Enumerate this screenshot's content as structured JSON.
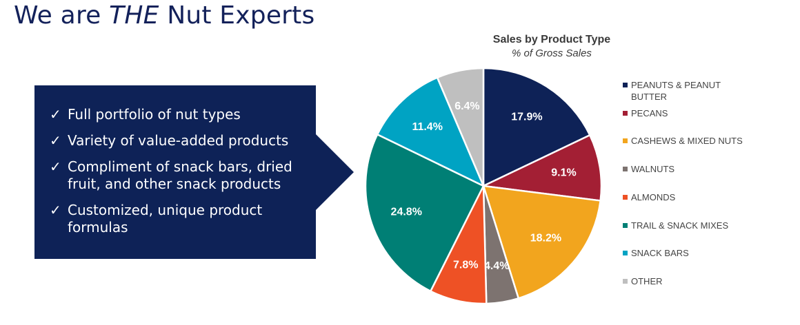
{
  "slide": {
    "title_pre": "We are ",
    "title_em": "THE",
    "title_post": " Nut Experts"
  },
  "callout": {
    "check_symbol": "✓",
    "bullets": [
      "Full portfolio of nut types",
      "Variety of value-added products",
      "Compliment of snack bars, dried fruit, and other snack products",
      "Customized, unique product formulas"
    ]
  },
  "chart_data": {
    "type": "pie",
    "title": "Sales by Product Type",
    "subtitle": "% of Gross Sales",
    "label_suffix": "%",
    "legend_position": "right",
    "slices": [
      {
        "label": "PEANUTS & PEANUT BUTTER",
        "value": 17.9,
        "color": "#0e2257"
      },
      {
        "label": "PECANS",
        "value": 9.1,
        "color": "#a31f34"
      },
      {
        "label": "CASHEWS & MIXED NUTS",
        "value": 18.2,
        "color": "#f2a51e"
      },
      {
        "label": "WALNUTS",
        "value": 4.4,
        "color": "#7d7370"
      },
      {
        "label": "ALMONDS",
        "value": 7.8,
        "color": "#ee5125"
      },
      {
        "label": "TRAIL & SNACK MIXES",
        "value": 24.8,
        "color": "#007f75"
      },
      {
        "label": "SNACK BARS",
        "value": 11.4,
        "color": "#00a3c3"
      },
      {
        "label": "OTHER",
        "value": 6.4,
        "color": "#bfbfbf"
      }
    ]
  }
}
